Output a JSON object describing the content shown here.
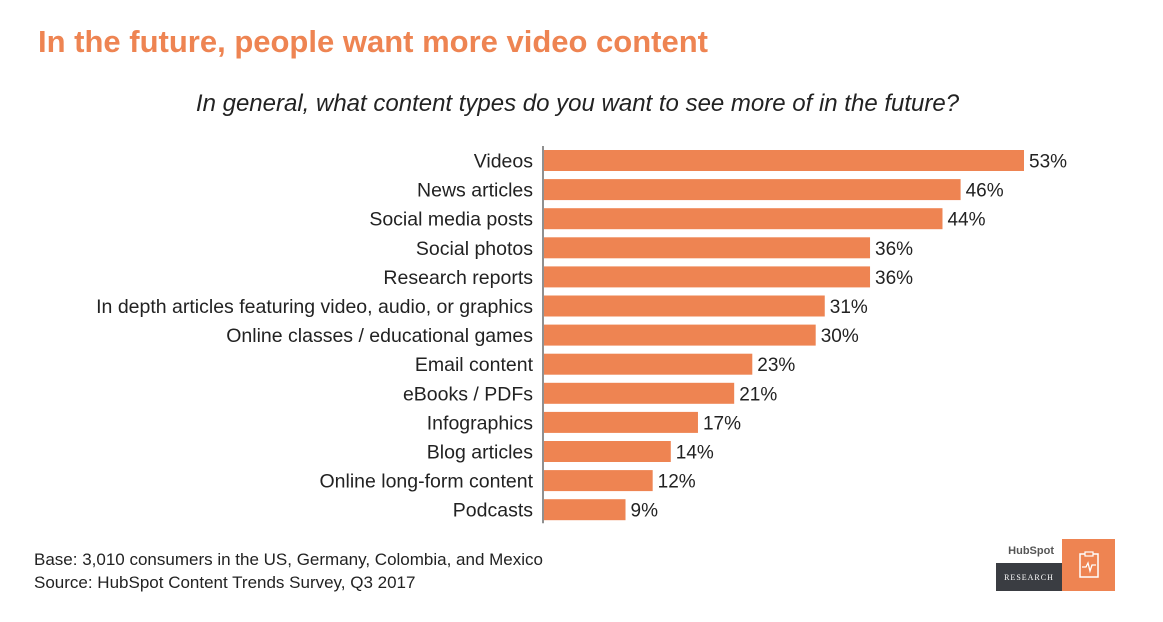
{
  "header": {
    "title": "In the future, people want more video content",
    "subtitle": "In general, what content types do you want to see more of in the future?"
  },
  "chart_data": {
    "type": "bar",
    "orientation": "horizontal",
    "categories": [
      "Videos",
      "News articles",
      "Social media posts",
      "Social photos",
      "Research reports",
      "In depth articles featuring video, audio, or graphics",
      "Online classes / educational games",
      "Email content",
      "eBooks / PDFs",
      "Infographics",
      "Blog articles",
      "Online long-form content",
      "Podcasts"
    ],
    "values": [
      53,
      46,
      44,
      36,
      36,
      31,
      30,
      23,
      21,
      17,
      14,
      12,
      9
    ],
    "data_labels": [
      "53%",
      "46%",
      "44%",
      "36%",
      "36%",
      "31%",
      "30%",
      "23%",
      "21%",
      "17%",
      "14%",
      "12%",
      "9%"
    ],
    "unit": "%",
    "xlim": [
      0,
      53
    ],
    "bar_color": "#ee8452",
    "grid": false,
    "legend": "none"
  },
  "footer": {
    "base": "Base: 3,010 consumers in the US, Germany, Colombia, and Mexico",
    "source": "Source: HubSpot Content Trends Survey, Q3 2017"
  },
  "badge": {
    "brand": "HubSpot",
    "label": "RESEARCH",
    "icon": "clipboard-pulse-icon"
  },
  "colors": {
    "accent": "#ee8452",
    "text": "#222222",
    "badge_dark": "#3a3d42"
  }
}
